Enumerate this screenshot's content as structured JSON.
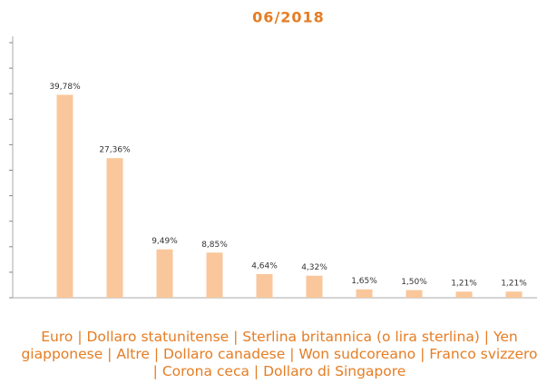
{
  "chart_data": {
    "type": "bar",
    "title": "06/2018",
    "categories": [
      "Euro",
      "Dollaro statunitense",
      "Sterlina britannica (o lira sterlina)",
      "Yen giapponese",
      "Altre",
      "Dollaro canadese",
      "Won sudcoreano",
      "Franco svizzero",
      "Corona ceca",
      "Dollaro di Singapore"
    ],
    "values": [
      39.78,
      27.36,
      9.49,
      8.85,
      4.64,
      4.32,
      1.65,
      1.5,
      1.21,
      1.21
    ],
    "value_labels": [
      "39,78%",
      "27,36%",
      "9,49%",
      "8,85%",
      "4,64%",
      "4,32%",
      "1,65%",
      "1,50%",
      "1,21%",
      "1,21%"
    ],
    "color": "#f9c79b",
    "ylim": [
      0,
      50
    ],
    "yticks": [
      0,
      5,
      10,
      15,
      20,
      25,
      30,
      35,
      40,
      45,
      50
    ]
  }
}
